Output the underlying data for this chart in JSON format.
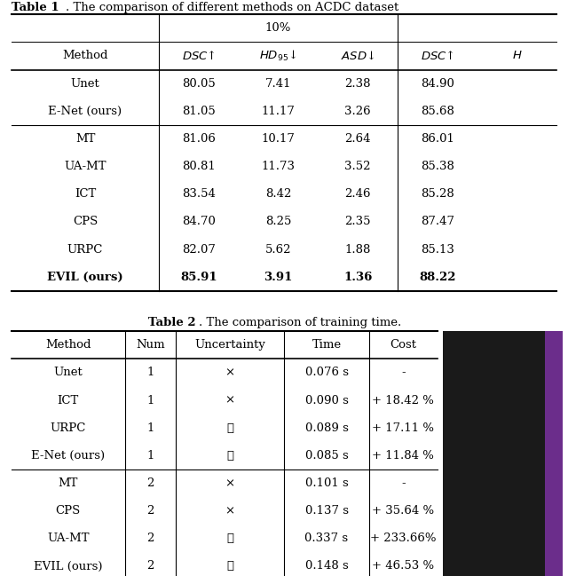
{
  "table1_title_bold": "Table 1",
  "table1_title_rest": ". The comparison of different methods on ACDC dataset",
  "table2_title_bold": "Table 2",
  "table2_title_rest": ". The comparison of training time.",
  "table1_rows": [
    [
      "Unet",
      "80.05",
      "7.41",
      "2.38",
      "84.90",
      ""
    ],
    [
      "E-Net (ours)",
      "81.05",
      "11.17",
      "3.26",
      "85.68",
      ""
    ],
    [
      "MT",
      "81.06",
      "10.17",
      "2.64",
      "86.01",
      ""
    ],
    [
      "UA-MT",
      "80.81",
      "11.73",
      "3.52",
      "85.38",
      ""
    ],
    [
      "ICT",
      "83.54",
      "8.42",
      "2.46",
      "85.28",
      ""
    ],
    [
      "CPS",
      "84.70",
      "8.25",
      "2.35",
      "87.47",
      ""
    ],
    [
      "URPC",
      "82.07",
      "5.62",
      "1.88",
      "85.13",
      ""
    ],
    [
      "EVIL (ours)",
      "85.91",
      "3.91",
      "1.36",
      "88.22",
      ""
    ]
  ],
  "table1_bold_row": 7,
  "table2_col_headers": [
    "Method",
    "Num",
    "Uncertainty",
    "Time",
    "Cost"
  ],
  "table2_rows": [
    [
      "Unet",
      "1",
      "×",
      "0.076 s",
      "-"
    ],
    [
      "ICT",
      "1",
      "×",
      "0.090 s",
      "+ 18.42 %"
    ],
    [
      "URPC",
      "1",
      "✓",
      "0.089 s",
      "+ 17.11 %"
    ],
    [
      "E-Net (ours)",
      "1",
      "✓",
      "0.085 s",
      "+ 11.84 %"
    ],
    [
      "MT",
      "2",
      "×",
      "0.101 s",
      "-"
    ],
    [
      "CPS",
      "2",
      "×",
      "0.137 s",
      "+ 35.64 %"
    ],
    [
      "UA-MT",
      "2",
      "✓",
      "0.337 s",
      "+ 233.66%"
    ],
    [
      "EVIL (ours)",
      "2",
      "✓",
      "0.148 s",
      "+ 46.53 %"
    ]
  ],
  "bg_color": "#ffffff"
}
